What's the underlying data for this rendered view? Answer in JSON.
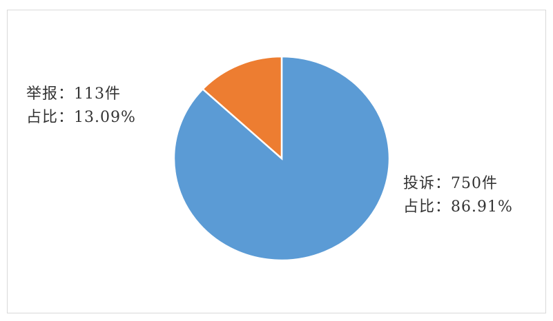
{
  "chart_data": {
    "type": "pie",
    "start_angle": "12 o'clock",
    "direction": "clockwise",
    "slices": [
      {
        "name": "投诉",
        "value": 750,
        "percent": 86.91,
        "color": "#5B9BD5",
        "label_line1": "投诉：750件",
        "label_line2": "占比：86.91%"
      },
      {
        "name": "举报",
        "value": 113,
        "percent": 13.09,
        "color": "#ED7D31",
        "label_line1": "举报：113件",
        "label_line2": "占比：13.09%"
      }
    ]
  }
}
